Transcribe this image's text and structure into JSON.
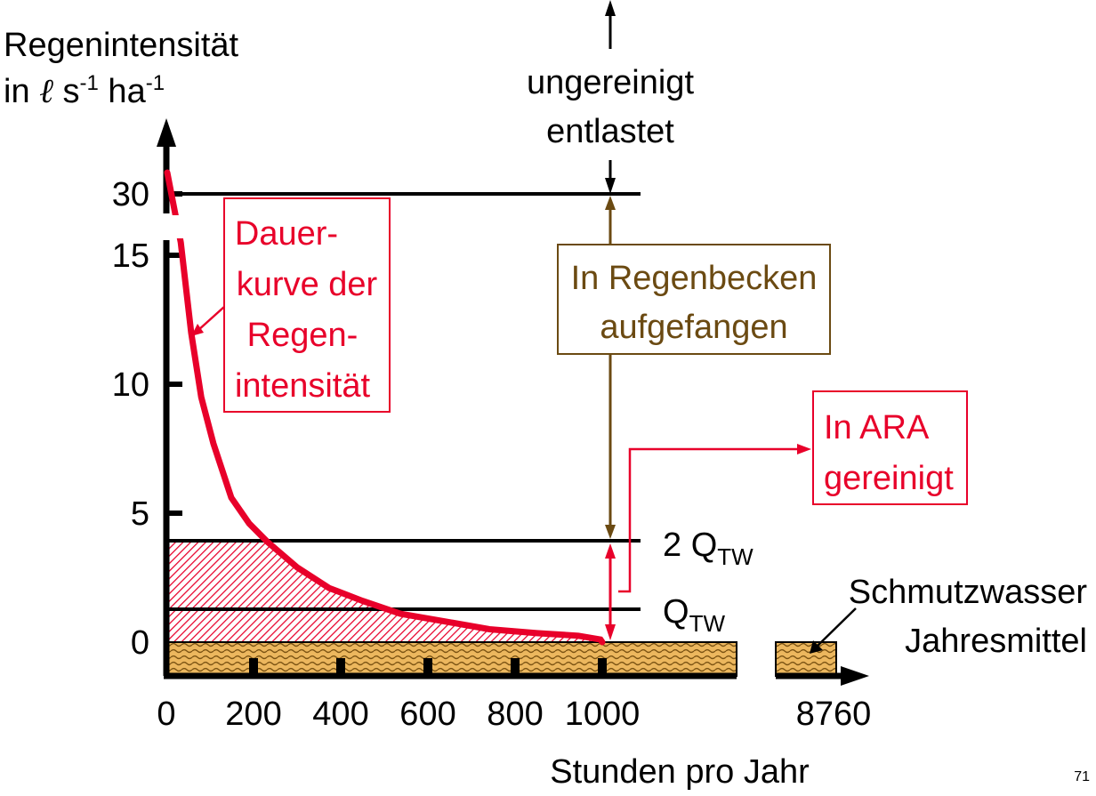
{
  "chart_data": {
    "type": "line",
    "ylabel_line1": "Regenintensität",
    "ylabel_line2": "in ℓ s-1 ha-1",
    "ylabel_unit": {
      "prefix": "in ",
      "l": "ℓ",
      "s": " s",
      "sup1": "-1",
      "ha": " ha",
      "sup2": "-1"
    },
    "xlabel": "Stunden pro Jahr",
    "y_ticks": [
      "0",
      "5",
      "10",
      "15",
      "30"
    ],
    "x_ticks": [
      "0",
      "200",
      "400",
      "600",
      "800",
      "1000",
      "8760"
    ],
    "axis_break": {
      "y": [
        15,
        30
      ],
      "x": [
        1300,
        8500
      ]
    },
    "series": [
      {
        "name": "Dauerkurve der Regenintensität",
        "color": "#e8002a",
        "x": [
          2,
          33,
          57,
          80,
          108,
          149,
          190,
          231,
          300,
          373,
          450,
          537,
          640,
          741,
          850,
          945,
          996,
          1000
        ],
        "y": [
          33,
          15.5,
          12,
          9.5,
          7.7,
          5.6,
          4.6,
          3.9,
          2.9,
          2.1,
          1.6,
          1.1,
          0.8,
          0.5,
          0.35,
          0.25,
          0.1,
          0
        ]
      }
    ],
    "reference_lines": [
      {
        "label": "2 Q",
        "sub": "TW",
        "value": 3.9
      },
      {
        "label": "Q",
        "sub": "TW",
        "value": 1.3
      },
      {
        "label": "",
        "value": 30
      }
    ],
    "annotations": {
      "curve_box": [
        "Dauer-",
        "kurve der",
        "Regen-",
        "intensität"
      ],
      "overflow": [
        "ungereinigt",
        "entlastet"
      ],
      "basin": [
        "In Regenbecken",
        "aufgefangen"
      ],
      "treatment": [
        "In ARA",
        "gereinigt"
      ],
      "wastewater": [
        "Schmutzwasser",
        "Jahresmittel"
      ]
    },
    "colors": {
      "curve": "#e8002a",
      "basin": "#6b4a12",
      "wastewater_fill": "#e8b35a",
      "hatch": "#e8002a"
    }
  },
  "page_number": "71"
}
